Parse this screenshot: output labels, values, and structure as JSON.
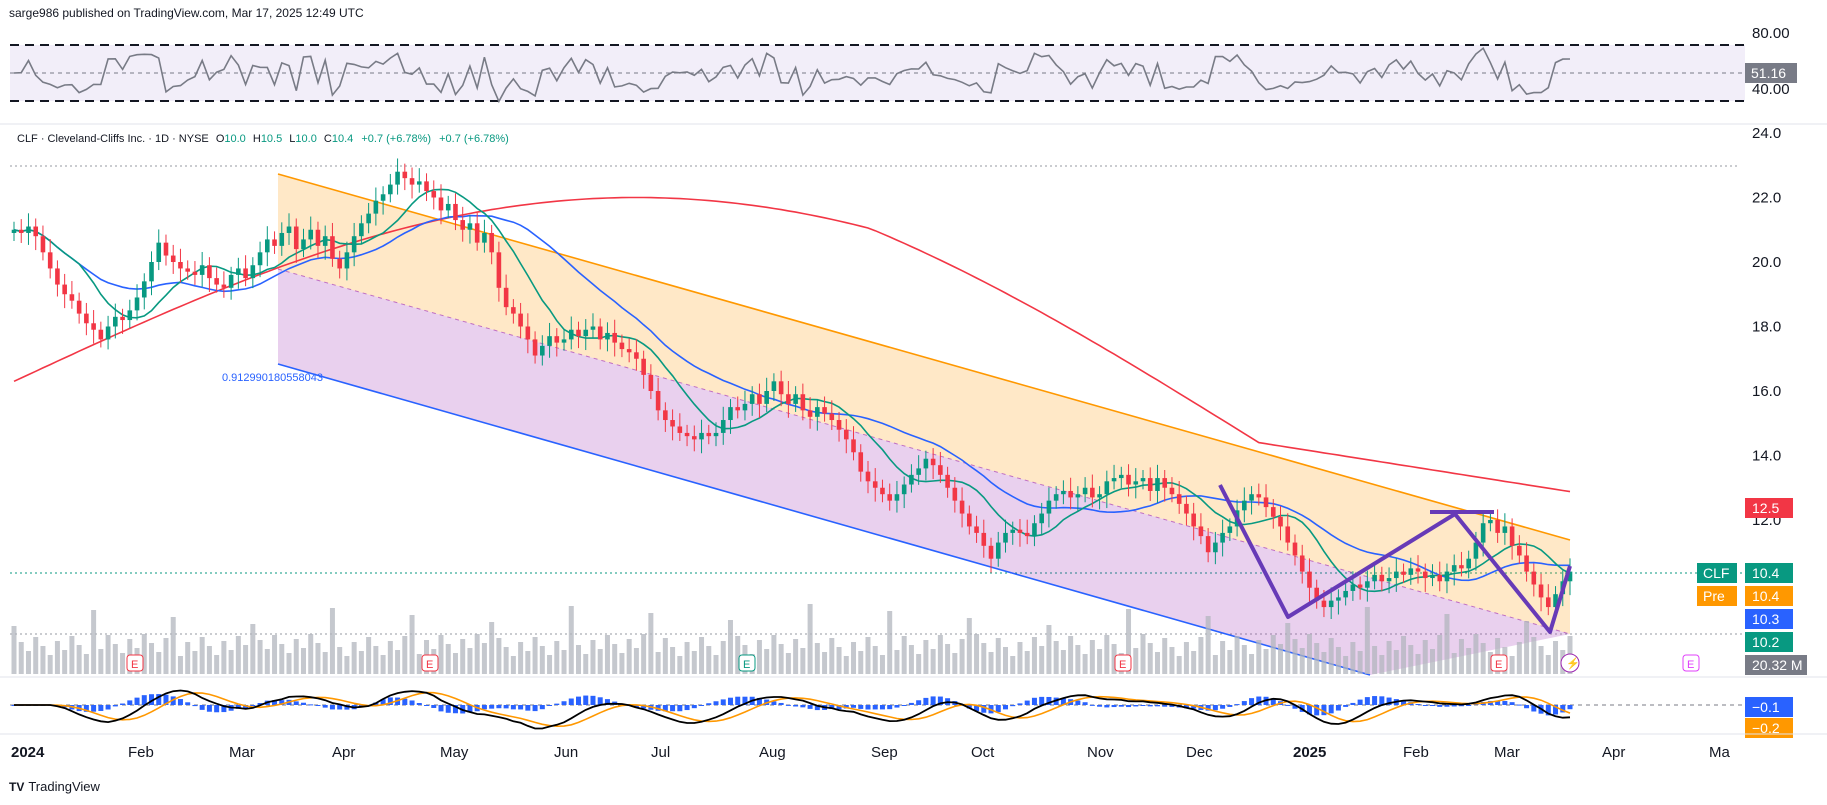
{
  "header": {
    "published": "sarge986 published on TradingView.com, Mar 17, 2025 12:49 UTC"
  },
  "legend": {
    "symbol": "CLF · Cleveland-Cliffs Inc. · 1D · NYSE",
    "open_label": "O",
    "open": "10.0",
    "high_label": "H",
    "high": "10.5",
    "low_label": "L",
    "low": "10.0",
    "close_label": "C",
    "close": "10.4",
    "change": "+0.7 (+6.78%)",
    "change2": "+0.7 (+6.78%)"
  },
  "brand": {
    "logo": "TV",
    "name": "TradingView"
  },
  "chart_data": {
    "type": "candlestick",
    "x_axis_ticks": [
      "2024",
      "Feb",
      "Mar",
      "Apr",
      "May",
      "Jun",
      "Jul",
      "Aug",
      "Sep",
      "Oct",
      "Nov",
      "Dec",
      "2025",
      "Feb",
      "Mar",
      "Apr",
      "Ma"
    ],
    "price_axis_ticks": [
      "24.0",
      "22.0",
      "20.0",
      "18.0",
      "16.0",
      "14.0",
      "12.0"
    ],
    "price_range": [
      9.7,
      24.4
    ],
    "rsi_axis_ticks": [
      "80.00",
      "40.00"
    ],
    "rsi_value": "51.16",
    "price_tags": [
      {
        "label": "",
        "value": "12.5",
        "color": "#f23645"
      },
      {
        "label": "CLF",
        "value": "10.4",
        "color": "#089981"
      },
      {
        "label": "Pre",
        "value": "10.4",
        "color": "#ff9800"
      },
      {
        "label": "",
        "value": "10.3",
        "color": "#2962ff"
      },
      {
        "label": "",
        "value": "10.2",
        "color": "#089981"
      },
      {
        "label": "",
        "value": "20.32 M",
        "color": "#787b86"
      }
    ],
    "macd_tags": [
      {
        "value": "−0.1",
        "color": "#2962ff"
      },
      {
        "value": "−0.2",
        "color": "#ff9800"
      }
    ],
    "annotation": "0.912990180558043",
    "closes": [
      21.0,
      20.9,
      21.1,
      20.8,
      20.3,
      19.8,
      19.3,
      19.0,
      18.8,
      18.4,
      18.1,
      17.9,
      17.6,
      18.0,
      18.3,
      18.2,
      18.5,
      18.9,
      19.4,
      20.0,
      20.6,
      20.2,
      20.0,
      19.8,
      19.7,
      19.6,
      19.9,
      19.5,
      19.3,
      19.2,
      19.6,
      19.8,
      19.5,
      19.9,
      20.3,
      20.7,
      20.5,
      20.9,
      21.1,
      20.4,
      20.7,
      21.0,
      20.5,
      20.8,
      20.1,
      19.8,
      20.3,
      20.8,
      21.2,
      21.5,
      21.9,
      22.1,
      22.4,
      22.8,
      22.6,
      22.4,
      22.5,
      22.2,
      22.0,
      21.6,
      21.8,
      21.3,
      21.0,
      21.2,
      20.6,
      20.9,
      20.3,
      19.2,
      18.6,
      18.4,
      18.0,
      17.6,
      17.1,
      17.4,
      17.7,
      17.5,
      17.6,
      17.9,
      17.7,
      17.9,
      18.0,
      17.6,
      17.8,
      17.5,
      17.3,
      17.2,
      17.0,
      16.5,
      16.0,
      15.4,
      15.1,
      14.9,
      14.7,
      14.6,
      14.5,
      14.7,
      14.6,
      14.7,
      15.1,
      15.5,
      15.4,
      15.6,
      15.9,
      15.6,
      16.0,
      16.3,
      15.9,
      15.6,
      15.9,
      15.4,
      15.2,
      15.5,
      15.3,
      15.1,
      14.8,
      14.5,
      14.1,
      13.5,
      13.2,
      13.0,
      12.8,
      12.6,
      12.8,
      13.1,
      13.4,
      13.6,
      13.9,
      13.7,
      13.4,
      13.0,
      12.6,
      12.2,
      11.8,
      11.6,
      11.2,
      10.8,
      11.3,
      11.6,
      11.7,
      11.6,
      11.5,
      11.9,
      12.2,
      12.6,
      12.8,
      12.9,
      12.7,
      12.8,
      13.0,
      12.7,
      12.8,
      13.2,
      13.3,
      13.4,
      13.1,
      13.2,
      13.3,
      12.9,
      13.3,
      13.0,
      12.8,
      12.5,
      12.2,
      11.8,
      11.5,
      11.0,
      11.3,
      11.6,
      11.8,
      12.3,
      12.6,
      12.8,
      12.7,
      12.4,
      12.1,
      11.8,
      11.3,
      10.9,
      10.4,
      9.9,
      9.5,
      9.3,
      9.5,
      9.6,
      9.8,
      10.0,
      9.9,
      10.1,
      10.3,
      10.1,
      10.2,
      10.4,
      10.3,
      10.5,
      10.4,
      10.2,
      10.3,
      10.1,
      10.4,
      10.6,
      10.5,
      10.8,
      11.3,
      11.9,
      12.0,
      11.6,
      11.8,
      11.2,
      10.9,
      10.4,
      10.0,
      9.6,
      9.3,
      9.7,
      10.1,
      10.4
    ]
  }
}
